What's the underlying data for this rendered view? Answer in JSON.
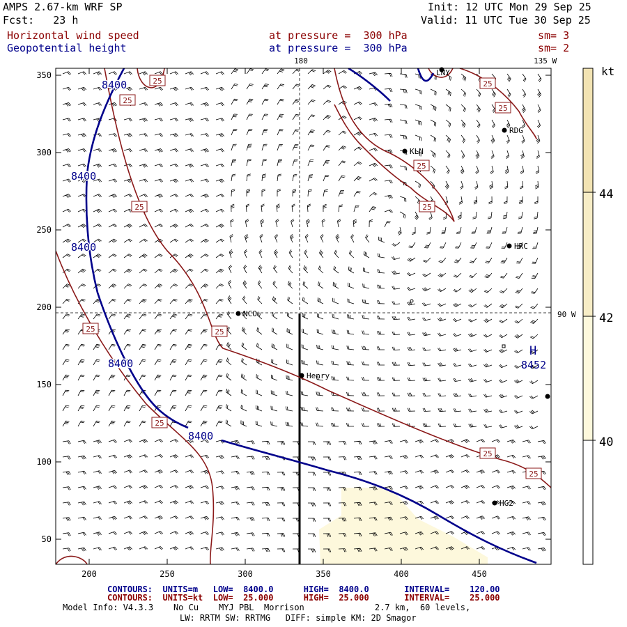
{
  "header": {
    "model": "AMPS 2.67-km WRF SP",
    "init": "Init: 12 UTC Mon 29 Sep 25",
    "fcst": "Fcst:   23 h",
    "valid": "Valid: 11 UTC Tue 30 Sep 25",
    "field1": "Horizontal wind speed",
    "field1_level": "at pressure =  300 hPa",
    "field1_sm": "sm= 3",
    "field2": "Geopotential height",
    "field2_level": "at pressure =  300 hPa",
    "field2_sm": "sm= 2"
  },
  "map": {
    "lon_labels": [
      {
        "label": "180"
      },
      {
        "label": "135 W"
      },
      {
        "label": "90 W"
      }
    ],
    "x_ticks": [
      "200",
      "250",
      "300",
      "350",
      "400",
      "450"
    ],
    "y_ticks": [
      "50",
      "100",
      "150",
      "200",
      "250",
      "300",
      "350"
    ],
    "stations": [
      {
        "id": "LNY"
      },
      {
        "id": "RDG"
      },
      {
        "id": "KLN"
      },
      {
        "id": "HRC"
      },
      {
        "id": "NCO"
      },
      {
        "id": "Henry"
      },
      {
        "id": "HG2"
      }
    ],
    "height_labels": [
      "8400",
      "8400",
      "8400",
      "8400",
      "8400"
    ],
    "wind_labels": [
      "25",
      "25",
      "25",
      "25",
      "25",
      "25",
      "25",
      "25",
      "25",
      "25",
      "25",
      "25"
    ],
    "high": {
      "symbol": "H",
      "value": "8452"
    }
  },
  "colorbar": {
    "unit": "kt",
    "levels": [
      "40",
      "42",
      "44"
    ],
    "colors": [
      "#ffffff",
      "#fdf8dc",
      "#f7edc6",
      "#f2e3b3"
    ]
  },
  "footer": {
    "contours1": "CONTOURS:  UNITS=m   LOW=  8400.0      HIGH=  8400.0       INTERVAL=    120.00",
    "contours2": "CONTOURS:  UNITS=kt  LOW=  25.000      HIGH=  25.000       INTERVAL=    25.000",
    "model_info": "Model Info: V4.3.3    No Cu    MYJ PBL  Morrison              2.7 km,  60 levels,",
    "physics": "LW: RRTM SW: RRTMG   DIFF: simple KM: 2D Smagor"
  },
  "colors": {
    "height_contour": "#00008b",
    "wind_contour": "#8b1a1a",
    "frame": "#000000"
  }
}
